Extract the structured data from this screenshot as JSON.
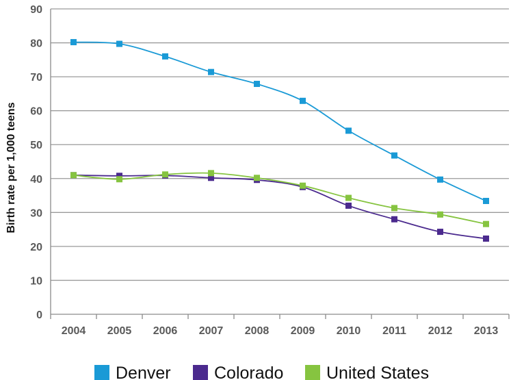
{
  "chart_data": {
    "type": "line",
    "title": "",
    "xlabel": "",
    "ylabel": "Birth rate per 1,000 teens",
    "ylim": [
      0,
      90
    ],
    "yticks": [
      0,
      10,
      20,
      30,
      40,
      50,
      60,
      70,
      80,
      90
    ],
    "grid": true,
    "legend_position": "bottom",
    "categories": [
      "2004",
      "2005",
      "2006",
      "2007",
      "2008",
      "2009",
      "2010",
      "2011",
      "2012",
      "2013"
    ],
    "series": [
      {
        "name": "Denver",
        "color": "#1a9ad6",
        "values": [
          80.2,
          79.7,
          76.0,
          71.4,
          67.9,
          62.9,
          54.1,
          46.8,
          39.7,
          33.4
        ]
      },
      {
        "name": "Colorado",
        "color": "#4b2a8e",
        "values": [
          41.0,
          40.8,
          40.9,
          40.2,
          39.6,
          37.5,
          32.0,
          28.0,
          24.3,
          22.3
        ]
      },
      {
        "name": "United States",
        "color": "#86c440",
        "values": [
          41.0,
          39.8,
          41.2,
          41.6,
          40.2,
          37.9,
          34.3,
          31.3,
          29.4,
          26.6
        ]
      }
    ]
  }
}
